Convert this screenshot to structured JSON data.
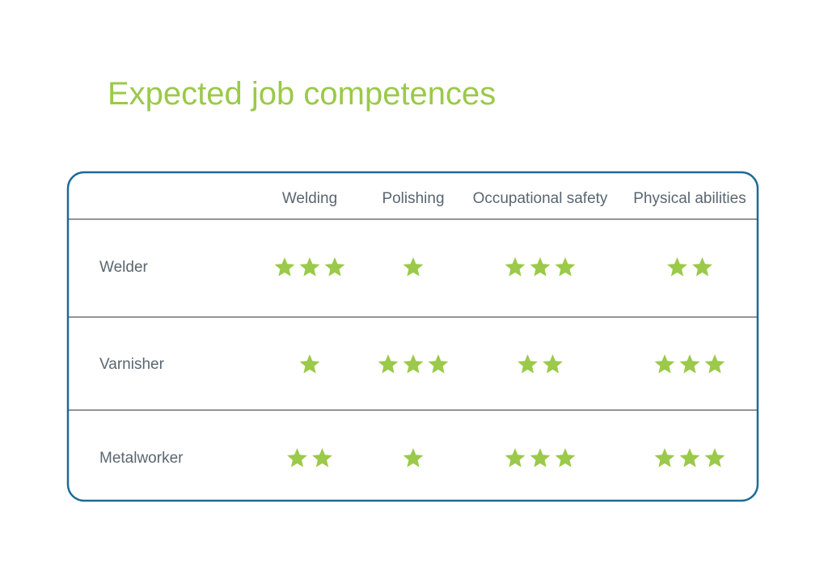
{
  "title": "Expected job competences",
  "table": {
    "columns": [
      "Welding",
      "Polishing",
      "Occupational safety",
      "Physical abilities"
    ],
    "rows": [
      {
        "label": "Welder",
        "ratings": [
          3,
          1,
          3,
          2
        ]
      },
      {
        "label": "Varnisher",
        "ratings": [
          1,
          3,
          2,
          3
        ]
      },
      {
        "label": "Metalworker",
        "ratings": [
          2,
          1,
          3,
          3
        ]
      }
    ]
  }
}
